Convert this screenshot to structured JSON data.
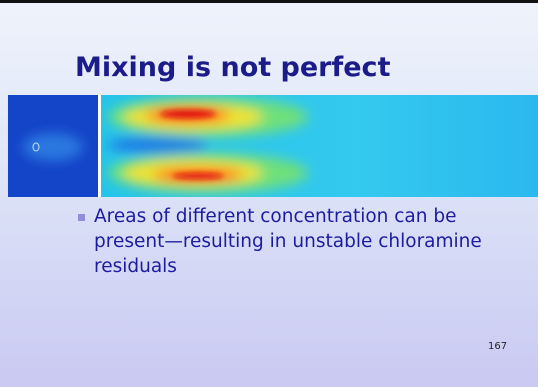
{
  "slide": {
    "title": "Mixing is not perfect",
    "bullets": [
      "Areas of different concentration can be present—resulting in unstable chloramine residuals"
    ],
    "page_number": "167"
  }
}
